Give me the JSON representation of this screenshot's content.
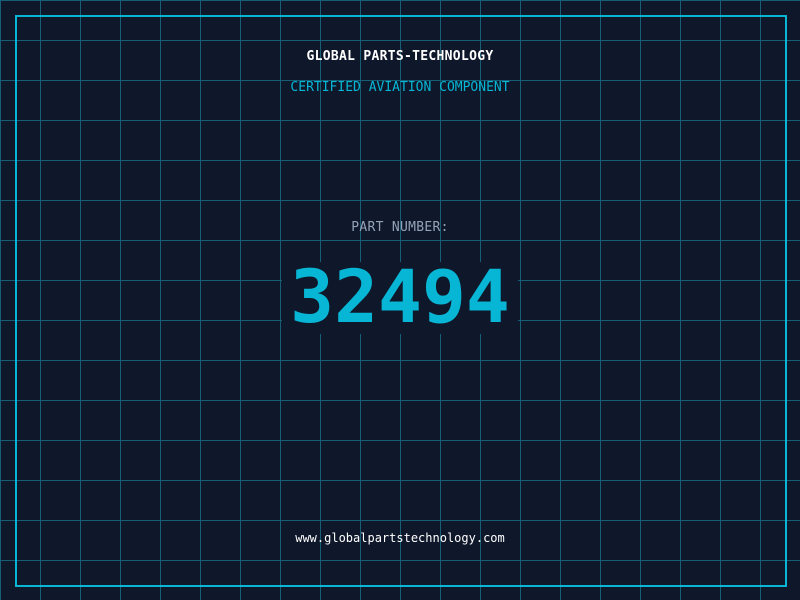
{
  "company": "GLOBAL PARTS-TECHNOLOGY",
  "subtitle": "CERTIFIED AVIATION COMPONENT",
  "part_label": "PART NUMBER:",
  "part_number": "32494",
  "website": "www.globalpartstechnology.com",
  "colors": {
    "background": "#0f172a",
    "accent": "#06b6d4",
    "grid": "#155e75",
    "label": "#94a3b8"
  }
}
